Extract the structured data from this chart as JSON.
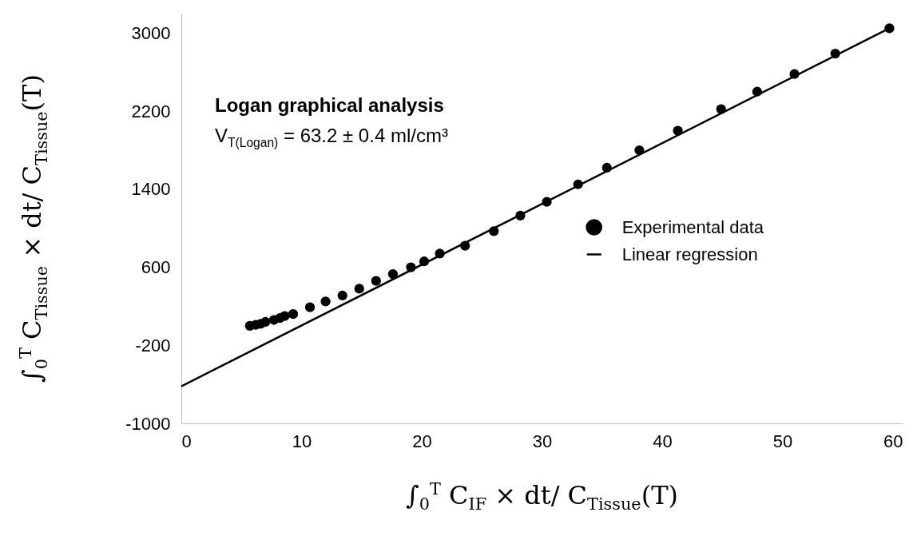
{
  "chart_data": {
    "type": "scatter",
    "xlabel": "∫$_{0}$$^{T}$ C$_{IF}$ × dt/ C$_{Tissue}$(T)",
    "ylabel": "∫$_{0}$$^{T}$ C$_{Tissue}$ × dt/ C$_{Tissue}$(T)",
    "annotations": [
      "Logan graphical analysis",
      "V$_{T(Logan)}$ = 63.2 ± 0.4 ml/cm³"
    ],
    "xlim": [
      0,
      60
    ],
    "xticks": [
      0,
      10,
      20,
      30,
      40,
      50,
      60
    ],
    "ylim": [
      -1000,
      3200
    ],
    "yticks": [
      -1000,
      -200,
      600,
      1400,
      2200,
      3000
    ],
    "grid": false,
    "legend": "right",
    "series": [
      {
        "name": "Experimental data",
        "marker": "circle",
        "color": "#000000",
        "x": [
          5.7,
          6.2,
          6.6,
          7.0,
          7.7,
          8.2,
          8.6,
          9.3,
          10.7,
          12.0,
          13.4,
          14.8,
          16.2,
          17.6,
          19.1,
          20.2,
          21.5,
          23.6,
          26.0,
          28.2,
          30.4,
          33.0,
          35.4,
          38.1,
          41.3,
          44.9,
          47.9,
          51.0,
          54.4,
          58.9
        ],
        "values": [
          0,
          10,
          20,
          40,
          60,
          80,
          100,
          120,
          190,
          250,
          310,
          380,
          460,
          530,
          600,
          660,
          740,
          820,
          970,
          1130,
          1270,
          1450,
          1620,
          1800,
          2000,
          2220,
          2400,
          2580,
          2790,
          3050
        ]
      },
      {
        "name": "Linear regression",
        "type": "line",
        "marker": "none",
        "color": "#000000",
        "line_style": "solid",
        "x": [
          0,
          58.9
        ],
        "values": [
          -620,
          3050
        ]
      }
    ]
  }
}
